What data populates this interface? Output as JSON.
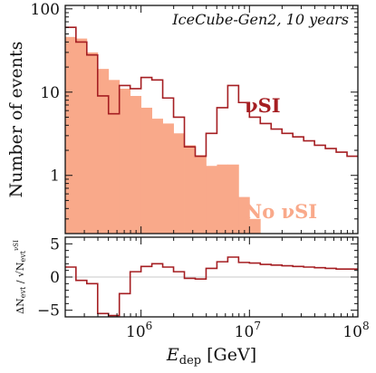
{
  "chart_data": [
    {
      "type": "step",
      "xscale": "log",
      "yscale": "log",
      "xlim": [
        200000,
        100000000
      ],
      "ylim": [
        0.2,
        110
      ],
      "annotation": "IceCube-Gen2, 10 years",
      "ylabel": "Number of events",
      "yticks": [
        {
          "value": 1,
          "label": "1"
        },
        {
          "value": 10,
          "label": "10"
        },
        {
          "value": 100,
          "label": "100"
        }
      ],
      "bin_edges": [
        200000,
        251189,
        316228,
        398107,
        501187,
        630957,
        794328,
        1000000,
        1258925,
        1584893,
        1995262,
        2511886,
        3162278,
        3981072,
        5011872,
        6309573,
        7943282,
        10000000,
        12589254,
        15848932,
        19952623,
        25118864,
        31622777,
        39810717,
        50118723,
        63095734,
        79432823,
        100000000
      ],
      "series": [
        {
          "name": "νSI",
          "style": "step-line",
          "color": "#a51e22",
          "values": [
            60,
            40,
            28,
            9,
            5.5,
            12,
            11,
            15,
            14,
            8.5,
            5,
            2.2,
            1.7,
            3.2,
            6.5,
            12,
            7.5,
            5,
            4.2,
            3.6,
            3.2,
            2.9,
            2.6,
            2.3,
            2.1,
            1.9,
            1.7
          ]
        },
        {
          "name": "No νSI",
          "style": "filled-step",
          "color": "#f9a98a",
          "values": [
            46,
            44,
            30,
            19,
            14,
            11,
            9,
            6.5,
            4.8,
            4.2,
            3.2,
            2.3,
            1.75,
            1.3,
            1.35,
            1.35,
            0.55,
            0.3
          ]
        }
      ]
    },
    {
      "type": "step",
      "xscale": "log",
      "xlim": [
        200000,
        100000000
      ],
      "ylim": [
        -6,
        6
      ],
      "ylabel": "ΔN_evt / √N_evt^νSI",
      "xlabel": "E_dep [GeV]",
      "yticks": [
        {
          "value": -5,
          "label": "−5"
        },
        {
          "value": 0,
          "label": "0"
        },
        {
          "value": 5,
          "label": "5"
        }
      ],
      "xticks": [
        {
          "value": 1000000,
          "base": "10",
          "exp": "6"
        },
        {
          "value": 10000000,
          "base": "10",
          "exp": "7"
        },
        {
          "value": 100000000,
          "base": "10",
          "exp": "8"
        }
      ],
      "reference_line": 0,
      "series": [
        {
          "name": "",
          "color": "#a51e22",
          "values": [
            1.5,
            -0.5,
            -1,
            -5.5,
            -5.8,
            -2.5,
            0.8,
            1.6,
            2,
            1.5,
            0.8,
            -0.2,
            -0.3,
            1.3,
            2.3,
            3,
            2.2,
            2.1,
            1.9,
            1.8,
            1.7,
            1.6,
            1.5,
            1.4,
            1.3,
            1.2,
            1.2
          ]
        }
      ]
    }
  ]
}
